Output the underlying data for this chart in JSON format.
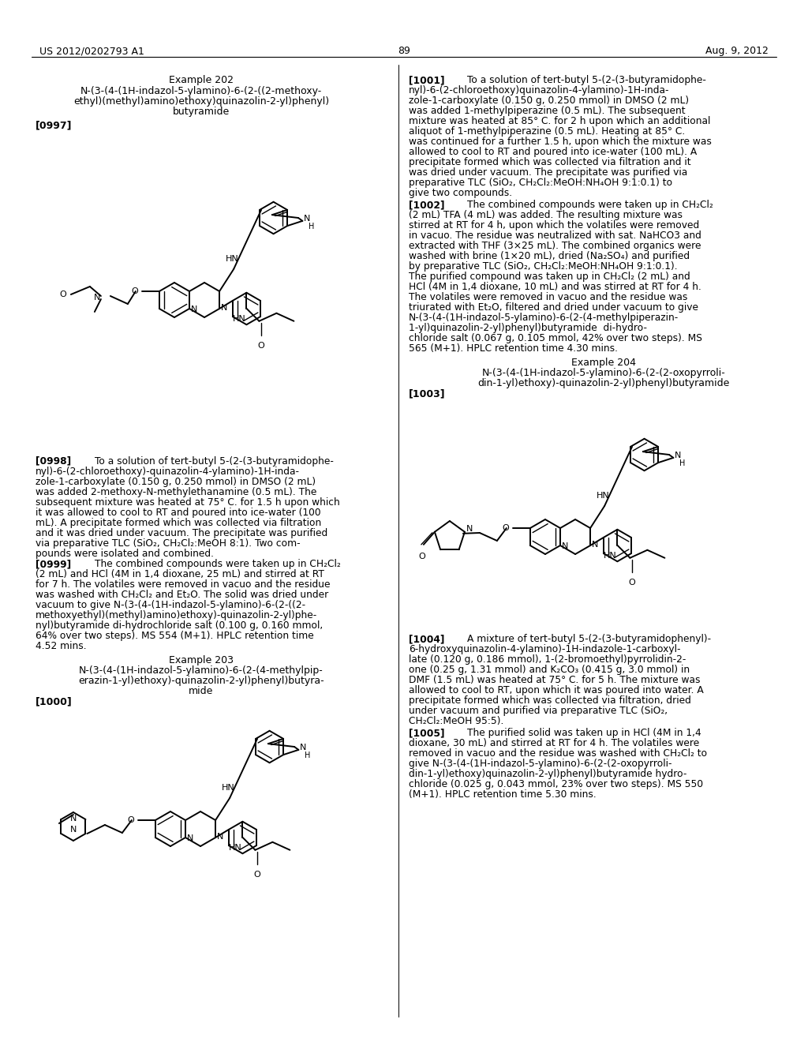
{
  "background_color": "#ffffff",
  "header_left": "US 2012/0202793 A1",
  "header_right": "Aug. 9, 2012",
  "page_number": "89"
}
